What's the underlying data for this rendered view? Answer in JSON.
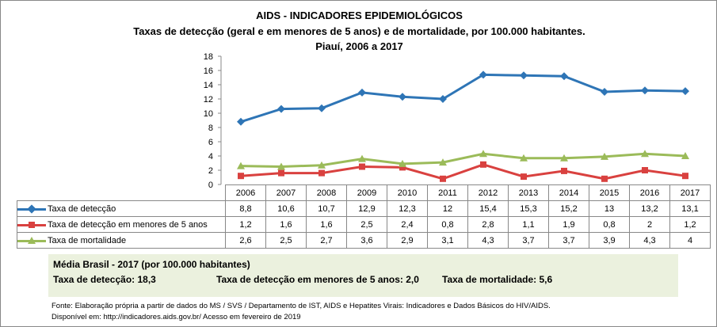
{
  "chart_data": {
    "type": "line",
    "title": "AIDS - INDICADORES EPIDEMIOLÓGICOS",
    "subtitle": "Taxas de detecção (geral e em menores de 5 anos) e de mortalidade, por 100.000 habitantes.",
    "subtitle2": "Piauí, 2006 a 2017",
    "categories": [
      "2006",
      "2007",
      "2008",
      "2009",
      "2010",
      "2011",
      "2012",
      "2013",
      "2014",
      "2015",
      "2016",
      "2017"
    ],
    "ylim": [
      0,
      18
    ],
    "yticks": [
      "0",
      "2",
      "4",
      "6",
      "8",
      "10",
      "12",
      "14",
      "16",
      "18"
    ],
    "legend": "table",
    "series": [
      {
        "name": "Taxa de detecção",
        "color": "#2e75b6",
        "marker": "diamond",
        "values": [
          8.8,
          10.6,
          10.7,
          12.9,
          12.3,
          12,
          15.4,
          15.3,
          15.2,
          13,
          13.2,
          13.1
        ],
        "labels": [
          "8,8",
          "10,6",
          "10,7",
          "12,9",
          "12,3",
          "12",
          "15,4",
          "15,3",
          "15,2",
          "13",
          "13,2",
          "13,1"
        ]
      },
      {
        "name": "Taxa de detecção em menores de 5 anos",
        "color": "#d9413f",
        "marker": "square",
        "values": [
          1.2,
          1.6,
          1.6,
          2.5,
          2.4,
          0.8,
          2.8,
          1.1,
          1.9,
          0.8,
          2,
          1.2
        ],
        "labels": [
          "1,2",
          "1,6",
          "1,6",
          "2,5",
          "2,4",
          "0,8",
          "2,8",
          "1,1",
          "1,9",
          "0,8",
          "2",
          "1,2"
        ]
      },
      {
        "name": "Taxa de mortalidade",
        "color": "#9bbb59",
        "marker": "triangle",
        "values": [
          2.6,
          2.5,
          2.7,
          3.6,
          2.9,
          3.1,
          4.3,
          3.7,
          3.7,
          3.9,
          4.3,
          4
        ],
        "labels": [
          "2,6",
          "2,5",
          "2,7",
          "3,6",
          "2,9",
          "3,1",
          "4,3",
          "3,7",
          "3,7",
          "3,9",
          "4,3",
          "4"
        ]
      }
    ]
  },
  "average": {
    "heading": "Média Brasil - 2017  (por 100.000 habitantes)",
    "detection": "Taxa  de detecção: 18,3",
    "under5": "Taxa  de detecção em menores de 5 anos:  2,0",
    "mortality": "Taxa  de mortalidade: 5,6",
    "background": "#ebf1de"
  },
  "source": {
    "line1": "Fonte: Elaboração própria a partir de dados do MS / SVS / Departamento de IST, AIDS e Hepatites Virais: Indicadores e Dados Básicos do HIV/AIDS.",
    "line2": "Disponível em: http://indicadores.aids.gov.br/   Acesso em fevereiro de 2019"
  }
}
